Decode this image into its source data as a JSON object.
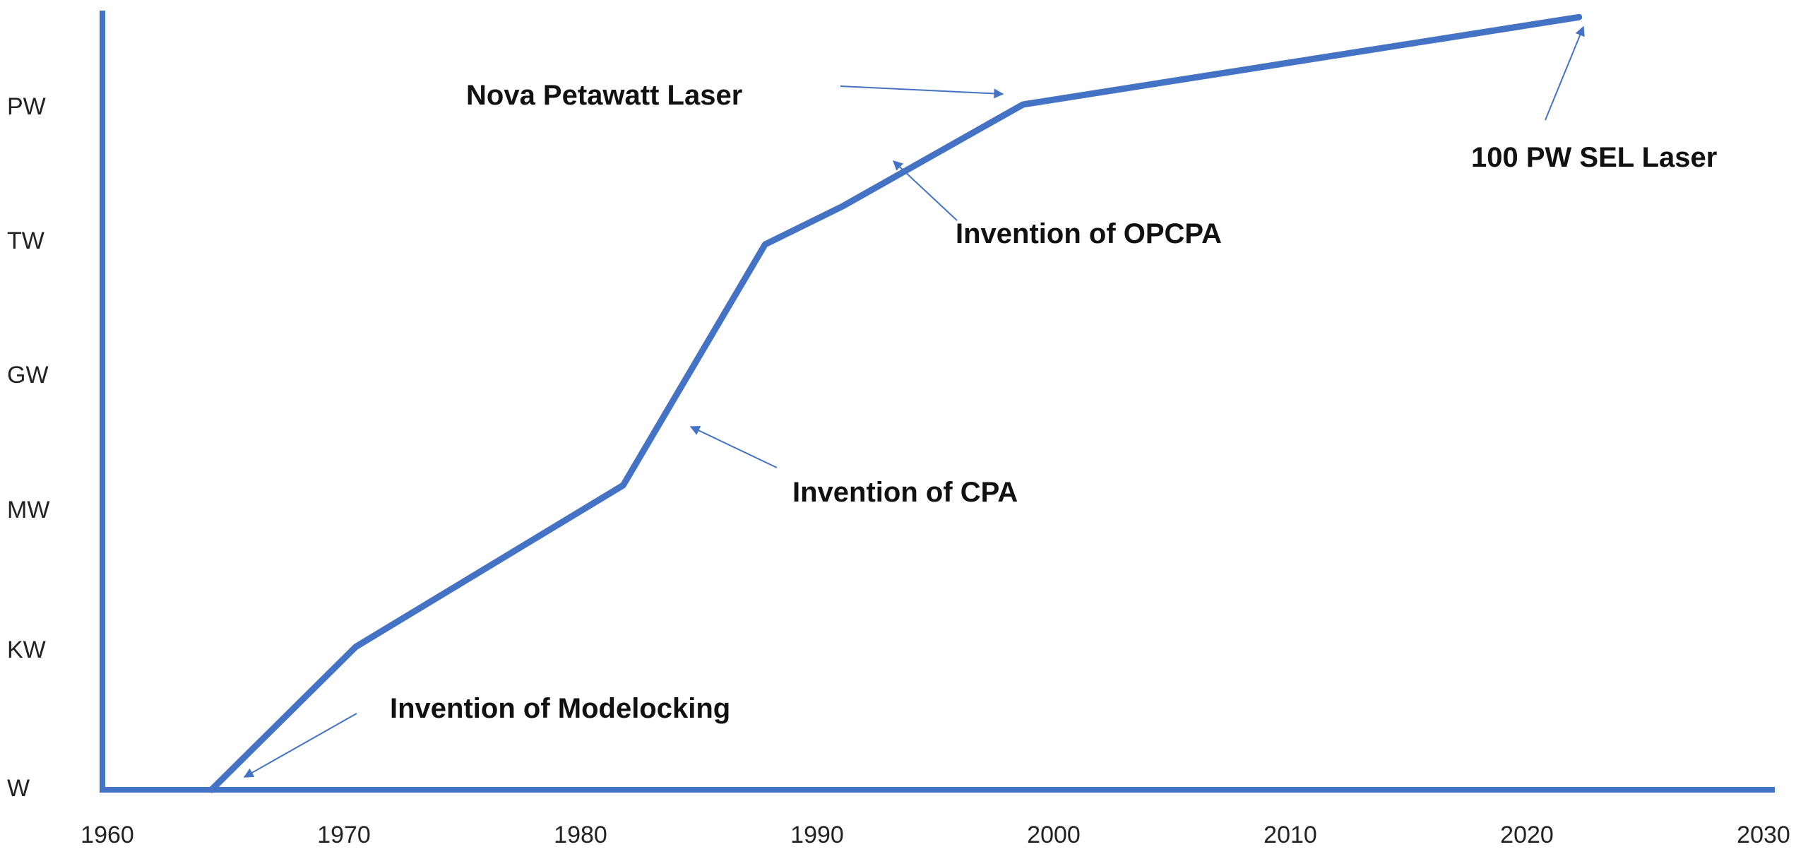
{
  "chart_data": {
    "type": "line",
    "title": "",
    "xlabel": "",
    "ylabel": "",
    "xlim": [
      1960,
      2030
    ],
    "x_ticks": [
      "1960",
      "1970",
      "1980",
      "1990",
      "2000",
      "2010",
      "2020",
      "2030"
    ],
    "y_ticks": [
      "W",
      "KW",
      "MW",
      "GW",
      "TW",
      "PW"
    ],
    "y_log_scale": true,
    "grid": false,
    "line_color": "#4472C4",
    "series": [
      {
        "x": [
          1964.4,
          1970.5,
          1981.8,
          1987.8,
          1991.1,
          1998.7,
          2022.2
        ],
        "y": [
          "1 W",
          "1.4 KW",
          "5 MW",
          "1 TW",
          "7 TW",
          "1.2 PW",
          "100 PW"
        ]
      }
    ],
    "annotations": [
      {
        "text": "Invention of Modelocking"
      },
      {
        "text": "Invention of CPA"
      },
      {
        "text": "Invention of OPCPA"
      },
      {
        "text": "Nova Petawatt Laser"
      },
      {
        "text": "100 PW SEL Laser"
      }
    ]
  }
}
